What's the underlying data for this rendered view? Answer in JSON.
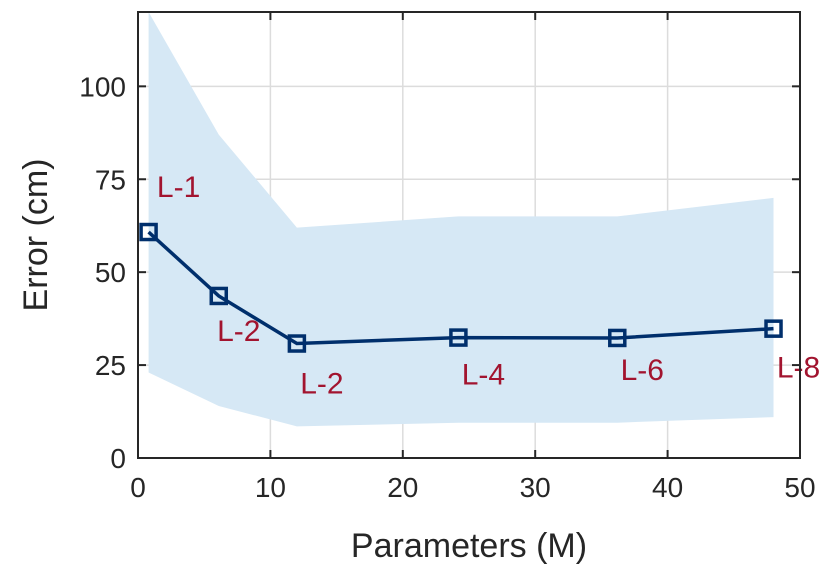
{
  "chart_data": {
    "type": "line",
    "xlabel": "Parameters (M)",
    "ylabel": "Error (cm)",
    "xlim": [
      0,
      50
    ],
    "ylim": [
      0,
      120
    ],
    "xticks": [
      "0",
      "10",
      "20",
      "30",
      "40",
      "50"
    ],
    "yticks": [
      "0",
      "25",
      "50",
      "75",
      "100"
    ],
    "grid": true,
    "colors": {
      "line": "#002f6c",
      "band": "#d6e8f5",
      "label": "#a2142f"
    },
    "series": [
      {
        "x": [
          0.8,
          6.1,
          12.0,
          24.2,
          36.2,
          48.0
        ],
        "values": [
          60.8,
          43.6,
          30.8,
          32.4,
          32.3,
          34.8
        ],
        "point_labels": [
          "L-1",
          "L-2",
          "L-2",
          "L-4",
          "L-6",
          "L-8"
        ]
      }
    ],
    "band": {
      "x": [
        0.8,
        6.1,
        12.0,
        24.2,
        36.2,
        48.0
      ],
      "upper": [
        121,
        87,
        62,
        65,
        65,
        70
      ],
      "lower": [
        23,
        14,
        8.5,
        9.5,
        9.5,
        11
      ]
    }
  }
}
